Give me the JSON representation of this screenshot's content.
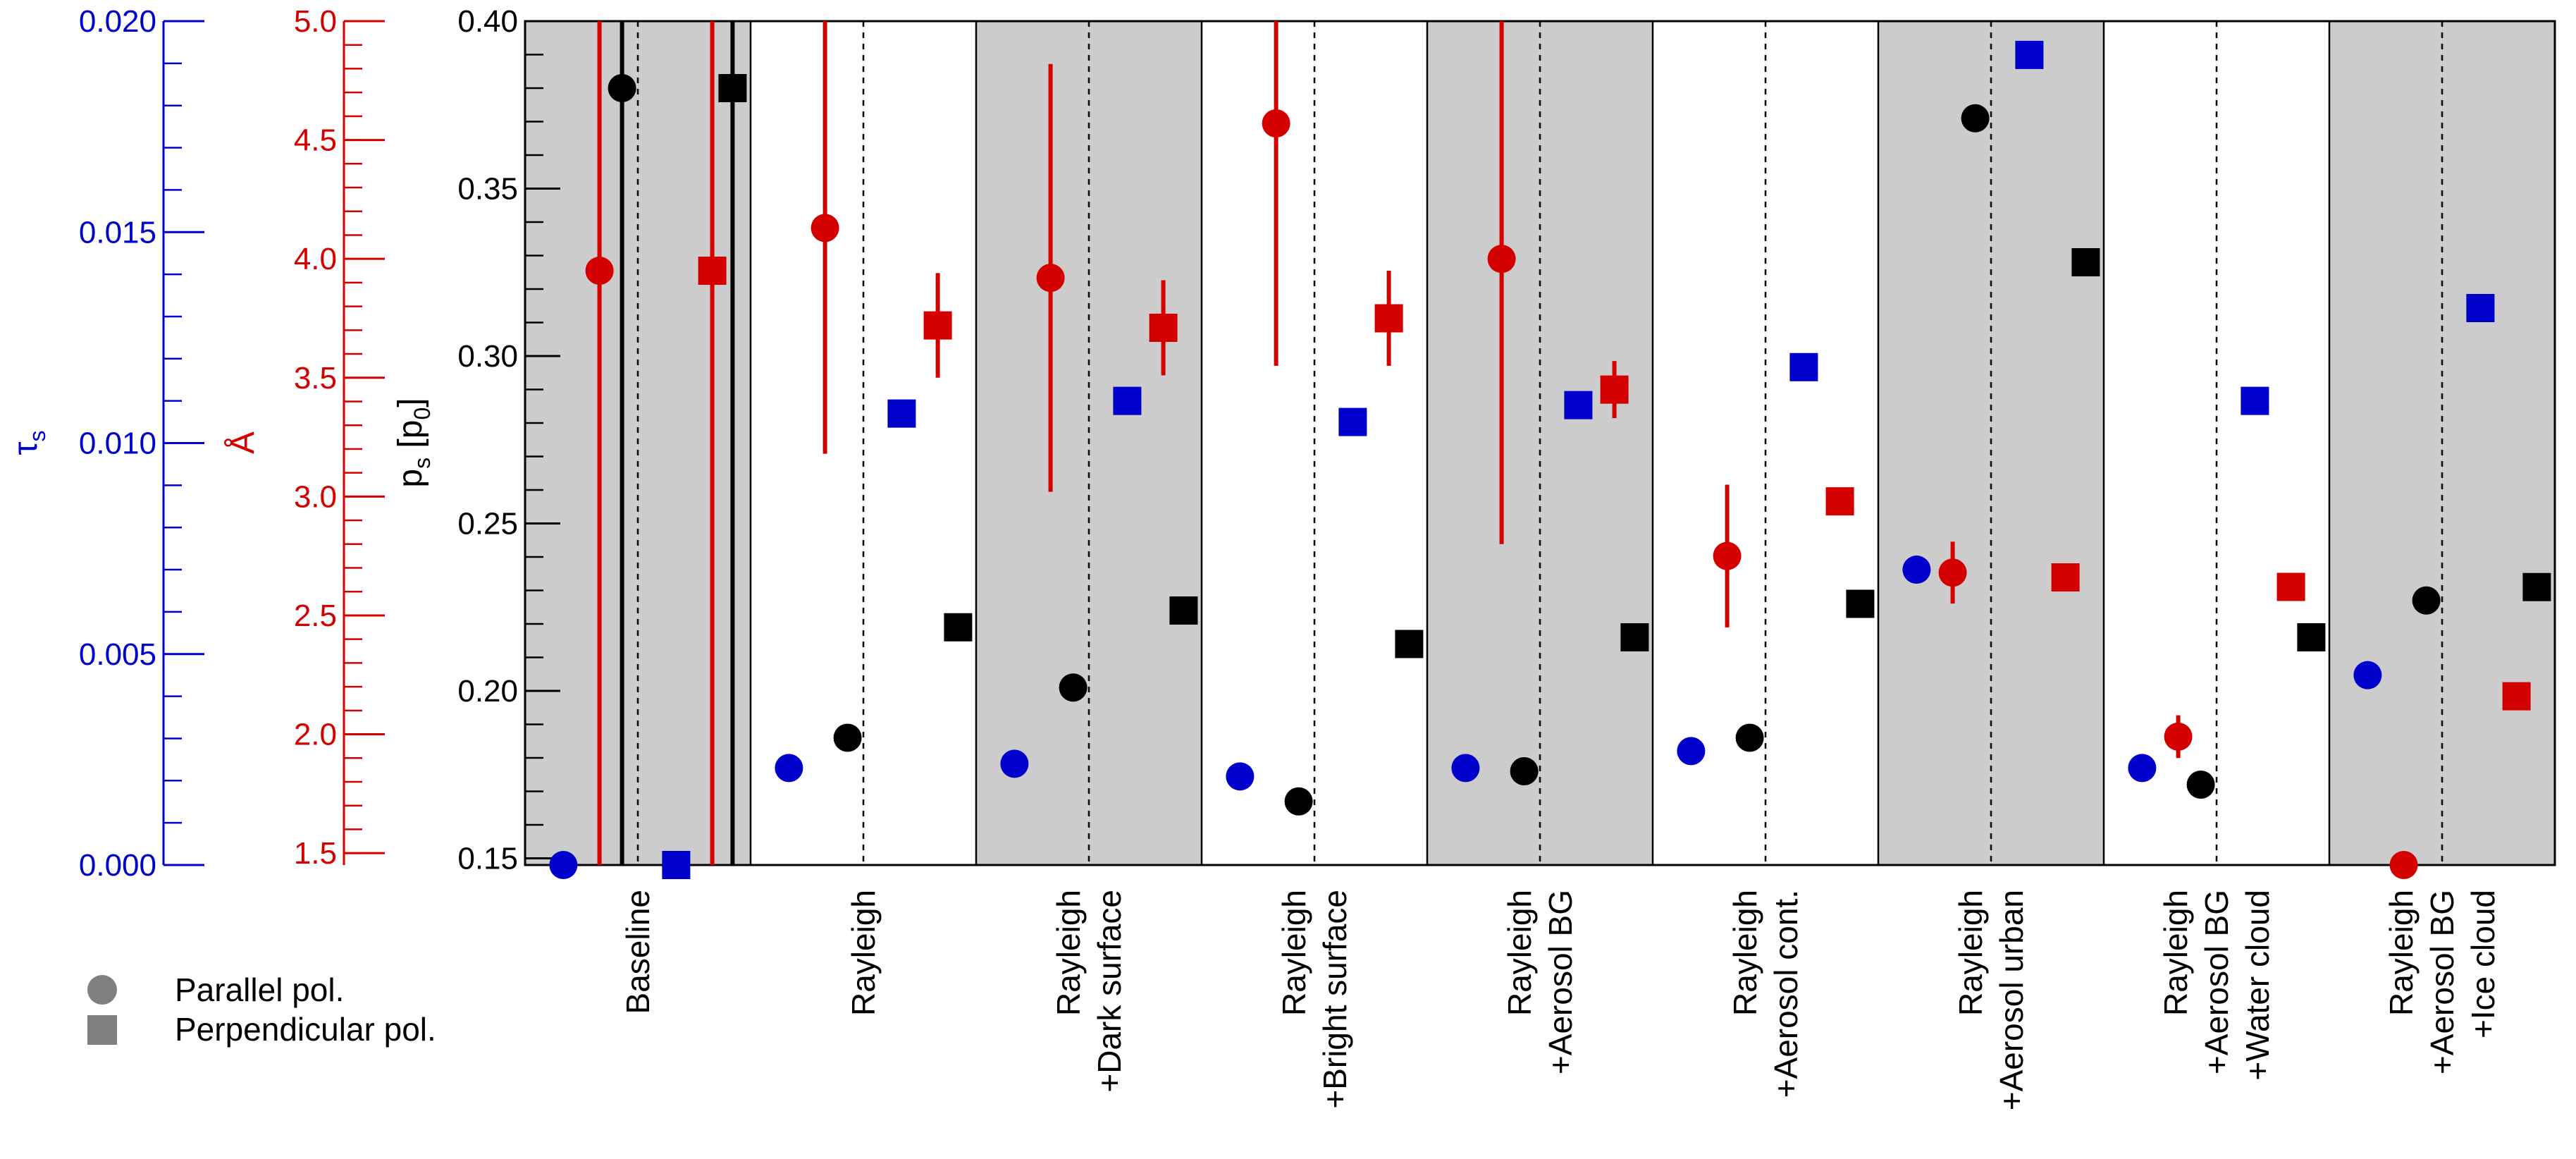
{
  "colors": {
    "tau": "#0000cc",
    "angstrom": "#d40000",
    "ps": "#000000",
    "panel_gray": "#cccccc"
  },
  "axes": {
    "tau": {
      "title_main": "τ",
      "title_sub": "s",
      "ylim": [
        0.0,
        0.02
      ],
      "ticks": [
        "0.000",
        "0.005",
        "0.010",
        "0.015",
        "0.020"
      ],
      "tick_values": [
        0.0,
        0.005,
        0.01,
        0.015,
        0.02
      ]
    },
    "angstrom": {
      "title": "Å",
      "ylim": [
        1.45,
        5.0
      ],
      "ticks": [
        "1.5",
        "2.0",
        "2.5",
        "3.0",
        "3.5",
        "4.0",
        "4.5",
        "5.0"
      ],
      "tick_values": [
        1.5,
        2.0,
        2.5,
        3.0,
        3.5,
        4.0,
        4.5,
        5.0
      ]
    },
    "ps": {
      "title_main": "p",
      "title_sub": "s",
      "title_rest": " [p",
      "title_sub2": "0",
      "title_end": "]",
      "ylim": [
        0.148,
        0.4
      ],
      "ticks": [
        "0.15",
        "0.20",
        "0.25",
        "0.30",
        "0.35",
        "0.40"
      ],
      "tick_values": [
        0.15,
        0.2,
        0.25,
        0.3,
        0.35,
        0.4
      ]
    }
  },
  "legend": {
    "parallel": "Parallel pol.",
    "perpendicular": "Perpendicular pol."
  },
  "chart_data": {
    "type": "scatter",
    "categories": [
      {
        "lines": [
          "Baseline"
        ],
        "shaded": true
      },
      {
        "lines": [
          "Rayleigh"
        ],
        "shaded": false
      },
      {
        "lines": [
          "Rayleigh",
          "+Dark surface"
        ],
        "shaded": true
      },
      {
        "lines": [
          "Rayleigh",
          "+Bright surface"
        ],
        "shaded": false
      },
      {
        "lines": [
          "Rayleigh",
          "+Aerosol BG"
        ],
        "shaded": true
      },
      {
        "lines": [
          "Rayleigh",
          "+Aerosol cont."
        ],
        "shaded": false
      },
      {
        "lines": [
          "Rayleigh",
          "+Aerosol urban"
        ],
        "shaded": true
      },
      {
        "lines": [
          "Rayleigh",
          "+Aerosol BG",
          "+Water cloud"
        ],
        "shaded": false
      },
      {
        "lines": [
          "Rayleigh",
          "+Aerosol BG",
          "+Ice cloud"
        ],
        "shaded": true
      }
    ],
    "series": [
      {
        "name": "tau_s",
        "axis": "tau",
        "color": "#0000cc",
        "parallel": [
          {
            "v": 0.0,
            "err": 0
          },
          {
            "v": 0.0023,
            "err": 0
          },
          {
            "v": 0.0024,
            "err": 0
          },
          {
            "v": 0.0021,
            "err": 0
          },
          {
            "v": 0.0023,
            "err": 0
          },
          {
            "v": 0.0027,
            "err": 0
          },
          {
            "v": 0.007,
            "err": 0
          },
          {
            "v": 0.0023,
            "err": 0
          },
          {
            "v": 0.0045,
            "err": 0
          }
        ],
        "perpendicular": [
          {
            "v": 0.0,
            "err": 0
          },
          {
            "v": 0.0107,
            "err": 0
          },
          {
            "v": 0.011,
            "err": 0
          },
          {
            "v": 0.0105,
            "err": 0
          },
          {
            "v": 0.0109,
            "err": 0
          },
          {
            "v": 0.0118,
            "err": 0
          },
          {
            "v": 0.0192,
            "err": 0
          },
          {
            "v": 0.011,
            "err": 0
          },
          {
            "v": 0.0132,
            "err": 0
          }
        ]
      },
      {
        "name": "Angstrom",
        "axis": "angstrom",
        "color": "#d40000",
        "parallel": [
          {
            "v": 3.95,
            "err": 3.2
          },
          {
            "v": 4.13,
            "err": 0.95
          },
          {
            "v": 3.92,
            "err": 0.9
          },
          {
            "v": 4.57,
            "err": 1.02
          },
          {
            "v": 4.0,
            "err": 1.2
          },
          {
            "v": 2.75,
            "err": 0.3
          },
          {
            "v": 2.68,
            "err": 0.13
          },
          {
            "v": 1.99,
            "err": 0.09
          },
          {
            "v": 1.45,
            "err": 0
          }
        ],
        "perpendicular": [
          {
            "v": 3.95,
            "err": 3.2
          },
          {
            "v": 3.72,
            "err": 0.22
          },
          {
            "v": 3.71,
            "err": 0.2
          },
          {
            "v": 3.75,
            "err": 0.2
          },
          {
            "v": 3.45,
            "err": 0.12
          },
          {
            "v": 2.98,
            "err": 0.05
          },
          {
            "v": 2.66,
            "err": 0.03
          },
          {
            "v": 2.62,
            "err": 0.04
          },
          {
            "v": 2.16,
            "err": 0
          }
        ]
      },
      {
        "name": "p_s",
        "axis": "ps",
        "color": "#000000",
        "parallel": [
          {
            "v": 0.38,
            "err": 0.24
          },
          {
            "v": 0.186,
            "err": 0.004
          },
          {
            "v": 0.201,
            "err": 0
          },
          {
            "v": 0.167,
            "err": 0.004
          },
          {
            "v": 0.176,
            "err": 0.003
          },
          {
            "v": 0.186,
            "err": 0.002
          },
          {
            "v": 0.371,
            "err": 0
          },
          {
            "v": 0.172,
            "err": 0.003
          },
          {
            "v": 0.227,
            "err": 0
          }
        ],
        "perpendicular": [
          {
            "v": 0.38,
            "err": 0.24
          },
          {
            "v": 0.219,
            "err": 0
          },
          {
            "v": 0.224,
            "err": 0
          },
          {
            "v": 0.214,
            "err": 0
          },
          {
            "v": 0.216,
            "err": 0
          },
          {
            "v": 0.226,
            "err": 0
          },
          {
            "v": 0.328,
            "err": 0
          },
          {
            "v": 0.216,
            "err": 0
          },
          {
            "v": 0.231,
            "err": 0
          }
        ]
      }
    ]
  }
}
